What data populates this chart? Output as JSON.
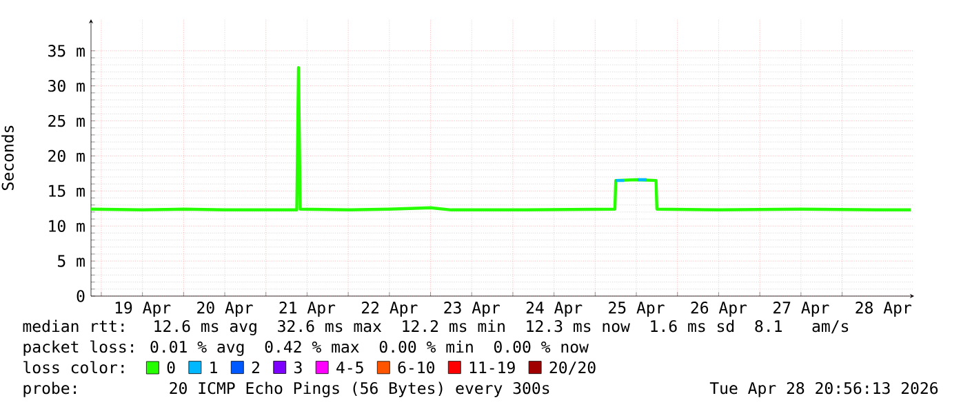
{
  "chart_data": {
    "type": "line",
    "ylabel": "Seconds",
    "x": [
      "2026-04-18T21:00",
      "2026-04-19T12:00",
      "2026-04-20T00:00",
      "2026-04-20T12:00",
      "2026-04-21T09:00",
      "2026-04-21T09:30",
      "2026-04-21T10:00",
      "2026-04-22T00:00",
      "2026-04-22T12:00",
      "2026-04-23T00:00",
      "2026-04-23T06:00",
      "2026-04-24T00:00",
      "2026-04-25T05:45",
      "2026-04-25T06:00",
      "2026-04-25T12:00",
      "2026-04-25T17:45",
      "2026-04-25T18:00",
      "2026-04-26T12:00",
      "2026-04-27T12:00",
      "2026-04-28T12:00",
      "2026-04-28T20:00"
    ],
    "series": [
      {
        "name": "0",
        "color": "#26ff00",
        "values": [
          12.4,
          12.3,
          12.4,
          12.3,
          12.3,
          32.6,
          12.4,
          12.3,
          12.4,
          12.6,
          12.3,
          12.3,
          12.4,
          16.5,
          16.6,
          16.5,
          12.4,
          12.3,
          12.4,
          12.3,
          12.3
        ]
      },
      {
        "name": "1",
        "color": "#00b8ff",
        "x": [
          "2026-04-25T06:00",
          "2026-04-25T08:30",
          "2026-04-25T10:00",
          "2026-04-25T12:30",
          "2026-04-25T15:00"
        ],
        "values": [
          16.5,
          16.5,
          null,
          16.6,
          16.6
        ]
      },
      {
        "name": "2",
        "color": "#0059ff",
        "values": [
          null,
          null,
          null,
          null,
          null,
          null,
          null,
          null,
          null,
          null,
          null,
          null,
          null,
          null,
          null,
          null,
          null,
          null,
          null,
          null,
          null
        ]
      },
      {
        "name": "3",
        "color": "#7e00ff",
        "values": [
          null,
          null,
          null,
          null,
          null,
          null,
          null,
          null,
          null,
          null,
          null,
          null,
          null,
          null,
          null,
          null,
          null,
          null,
          null,
          null,
          null
        ]
      },
      {
        "name": "4-5",
        "color": "#ff00ff",
        "values": [
          null,
          null,
          null,
          null,
          null,
          null,
          null,
          null,
          null,
          null,
          null,
          null,
          null,
          null,
          null,
          null,
          null,
          null,
          null,
          null,
          null
        ]
      },
      {
        "name": "6-10",
        "color": "#ff5500",
        "values": [
          null,
          null,
          null,
          null,
          null,
          null,
          null,
          null,
          null,
          null,
          null,
          null,
          null,
          null,
          null,
          null,
          null,
          null,
          null,
          null,
          null
        ]
      },
      {
        "name": "11-19",
        "color": "#ff0000",
        "values": [
          null,
          null,
          null,
          null,
          null,
          null,
          null,
          null,
          null,
          null,
          null,
          null,
          null,
          null,
          null,
          null,
          null,
          null,
          null,
          null,
          null
        ]
      },
      {
        "name": "20/20",
        "color": "#a10000",
        "values": [
          null,
          null,
          null,
          null,
          null,
          null,
          null,
          null,
          null,
          null,
          null,
          null,
          null,
          null,
          null,
          null,
          null,
          null,
          null,
          null,
          null
        ]
      }
    ],
    "legend": "bottom",
    "legend_title": "loss color:",
    "xlim": [
      "2026-04-18T21:00",
      "2026-04-28T21:00"
    ],
    "xticks": [
      {
        "value": "2026-04-19T00:00",
        "label": null
      },
      {
        "value": "2026-04-19T12:00",
        "label": "19 Apr"
      },
      {
        "value": "2026-04-20T00:00",
        "label": null
      },
      {
        "value": "2026-04-20T12:00",
        "label": "20 Apr"
      },
      {
        "value": "2026-04-21T00:00",
        "label": null
      },
      {
        "value": "2026-04-21T12:00",
        "label": "21 Apr"
      },
      {
        "value": "2026-04-22T00:00",
        "label": null
      },
      {
        "value": "2026-04-22T12:00",
        "label": "22 Apr"
      },
      {
        "value": "2026-04-23T00:00",
        "label": null
      },
      {
        "value": "2026-04-23T12:00",
        "label": "23 Apr"
      },
      {
        "value": "2026-04-24T00:00",
        "label": null
      },
      {
        "value": "2026-04-24T12:00",
        "label": "24 Apr"
      },
      {
        "value": "2026-04-25T00:00",
        "label": null
      },
      {
        "value": "2026-04-25T12:00",
        "label": "25 Apr"
      },
      {
        "value": "2026-04-26T00:00",
        "label": null
      },
      {
        "value": "2026-04-26T12:00",
        "label": "26 Apr"
      },
      {
        "value": "2026-04-27T00:00",
        "label": null
      },
      {
        "value": "2026-04-27T12:00",
        "label": "27 Apr"
      },
      {
        "value": "2026-04-28T00:00",
        "label": null
      },
      {
        "value": "2026-04-28T12:00",
        "label": "28 Apr"
      }
    ],
    "ylim": [
      0,
      39.5
    ],
    "yticks": [
      0,
      {
        "value": 5,
        "label": "5 m"
      },
      {
        "value": 10,
        "label": "10 m"
      },
      {
        "value": 15,
        "label": "15 m"
      },
      {
        "value": 20,
        "label": "20 m"
      },
      {
        "value": 25,
        "label": "25 m"
      },
      {
        "value": 30,
        "label": "30 m"
      },
      {
        "value": 35,
        "label": "35 m"
      }
    ],
    "grid": true,
    "marker": "none",
    "line_style": "solid",
    "annotations": [
      "median rtt:  12.6 ms avg  32.6 ms max  12.2 ms min  12.3 ms now  1.6 ms sd  8.1   am/s",
      "packet loss: 0.01 % avg  0.42 % max  0.00 % min  0.00 % now",
      "probe:       20 ICMP Echo Pings (56 Bytes) every 300s",
      "Tue Apr 28 20:56:13 2026"
    ]
  }
}
